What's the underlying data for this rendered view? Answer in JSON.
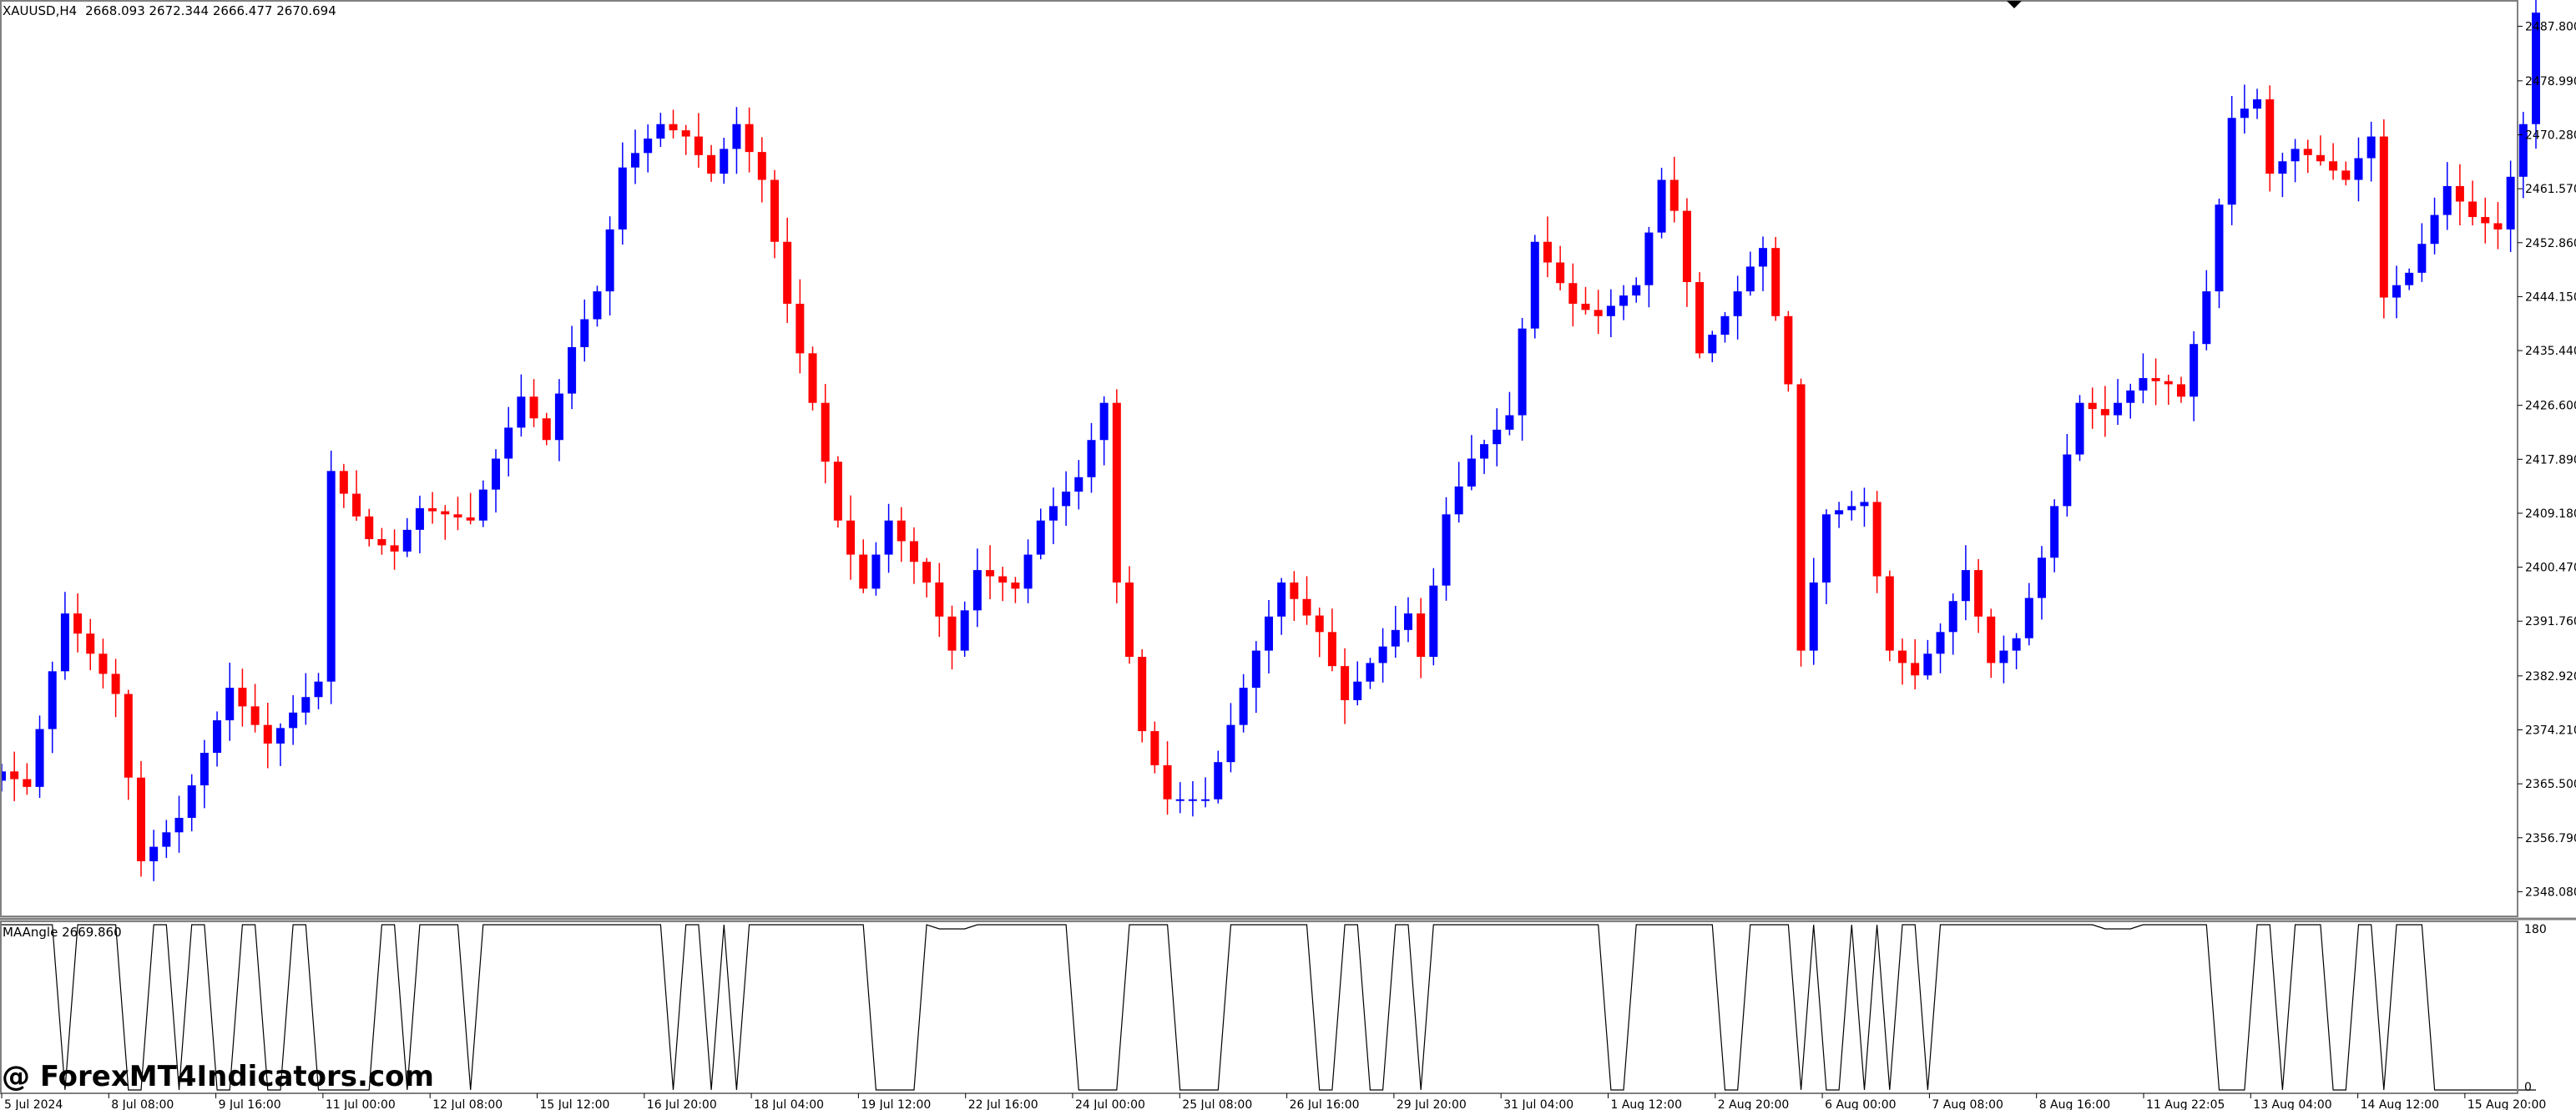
{
  "header": {
    "symbol_label": "XAUUSD,H4",
    "ohlc_label": "2668.093 2672.344 2666.477 2670.694"
  },
  "indicator": {
    "label": "MAAngle 2669.860",
    "scale_top": "180",
    "scale_bottom": "0"
  },
  "watermark": "@ ForexMT4Indicators.com",
  "colors": {
    "bull": "#0000ff",
    "bear": "#ff0000",
    "indicator_line": "#000000",
    "frame": "#808080",
    "background": "#ffffff"
  },
  "chart_data": [
    {
      "type": "candlestick",
      "symbol": "XAUUSD",
      "timeframe": "H4",
      "ylim": [
        2344.5,
        2491.5
      ],
      "y_ticks": [
        "2487.800",
        "2478.990",
        "2470.280",
        "2461.570",
        "2452.860",
        "2444.150",
        "2435.440",
        "2426.600",
        "2417.890",
        "2409.180",
        "2400.470",
        "2391.760",
        "2382.920",
        "2374.210",
        "2365.500",
        "2356.790",
        "2348.080"
      ],
      "x_ticks": [
        "5 Jul 2024",
        "8 Jul 08:00",
        "9 Jul 16:00",
        "11 Jul 00:00",
        "12 Jul 08:00",
        "15 Jul 12:00",
        "16 Jul 20:00",
        "18 Jul 04:00",
        "19 Jul 12:00",
        "22 Jul 16:00",
        "24 Jul 00:00",
        "25 Jul 08:00",
        "26 Jul 16:00",
        "29 Jul 20:00",
        "31 Jul 04:00",
        "1 Aug 12:00",
        "2 Aug 20:00",
        "6 Aug 00:00",
        "7 Aug 08:00",
        "8 Aug 16:00",
        "11 Aug 22:05",
        "13 Aug 04:00",
        "14 Aug 12:00",
        "15 Aug 20:00"
      ],
      "anchors": [
        [
          0,
          2367.5
        ],
        [
          2,
          2365
        ],
        [
          5,
          2393
        ],
        [
          9,
          2380
        ],
        [
          11,
          2353
        ],
        [
          14,
          2360
        ],
        [
          18,
          2381
        ],
        [
          21,
          2372
        ],
        [
          25,
          2382
        ],
        [
          26,
          2416
        ],
        [
          29,
          2405
        ],
        [
          31,
          2403
        ],
        [
          33,
          2410
        ],
        [
          37,
          2408
        ],
        [
          41,
          2428
        ],
        [
          43,
          2421
        ],
        [
          45,
          2436
        ],
        [
          47,
          2445
        ],
        [
          49,
          2465
        ],
        [
          52,
          2472
        ],
        [
          54,
          2470
        ],
        [
          56,
          2464
        ],
        [
          58,
          2472
        ],
        [
          60,
          2463
        ],
        [
          62,
          2443
        ],
        [
          64,
          2427
        ],
        [
          66,
          2408
        ],
        [
          68,
          2397
        ],
        [
          70,
          2408
        ],
        [
          73,
          2398
        ],
        [
          75,
          2387
        ],
        [
          77,
          2400
        ],
        [
          80,
          2397
        ],
        [
          82,
          2408
        ],
        [
          85,
          2415
        ],
        [
          87,
          2427
        ],
        [
          88,
          2398
        ],
        [
          90,
          2374
        ],
        [
          92,
          2363
        ],
        [
          95,
          2363
        ],
        [
          97,
          2375
        ],
        [
          99,
          2387
        ],
        [
          101,
          2398
        ],
        [
          104,
          2390
        ],
        [
          106,
          2379
        ],
        [
          108,
          2385
        ],
        [
          111,
          2393
        ],
        [
          112,
          2386
        ],
        [
          114,
          2409
        ],
        [
          116,
          2418
        ],
        [
          119,
          2425
        ],
        [
          121,
          2453
        ],
        [
          124,
          2443
        ],
        [
          126,
          2441
        ],
        [
          129,
          2446
        ],
        [
          131,
          2463
        ],
        [
          132,
          2458
        ],
        [
          134,
          2435
        ],
        [
          136,
          2441
        ],
        [
          138,
          2449
        ],
        [
          139,
          2452
        ],
        [
          141,
          2430
        ],
        [
          142,
          2387
        ],
        [
          144,
          2409
        ],
        [
          147,
          2411
        ],
        [
          149,
          2387
        ],
        [
          151,
          2383
        ],
        [
          153,
          2390
        ],
        [
          155,
          2400
        ],
        [
          157,
          2385
        ],
        [
          159,
          2389
        ],
        [
          161,
          2402
        ],
        [
          164,
          2427
        ],
        [
          166,
          2425
        ],
        [
          169,
          2431
        ],
        [
          171,
          2430
        ],
        [
          172,
          2428
        ],
        [
          174,
          2445
        ],
        [
          176,
          2473
        ],
        [
          178,
          2476
        ],
        [
          179,
          2464
        ],
        [
          181,
          2468
        ],
        [
          183,
          2466
        ],
        [
          185,
          2463
        ],
        [
          187,
          2470
        ],
        [
          188,
          2444
        ],
        [
          190,
          2448
        ],
        [
          193,
          2462
        ],
        [
          195,
          2457
        ],
        [
          197,
          2455
        ],
        [
          199,
          2472
        ],
        [
          200,
          2490
        ]
      ],
      "tooltip_ohlc": {
        "open": 2668.093,
        "high": 2672.344,
        "low": 2666.477,
        "close": 2670.694
      }
    },
    {
      "type": "line",
      "name": "MAAngle",
      "ylim": [
        0,
        180
      ],
      "last_value": 2669.86,
      "high_segments": [
        [
          0,
          4
        ],
        [
          6,
          9
        ],
        [
          12,
          13
        ],
        [
          15,
          16
        ],
        [
          19,
          20
        ],
        [
          23,
          24
        ],
        [
          30,
          31
        ],
        [
          33,
          34
        ],
        [
          35,
          36
        ],
        [
          38,
          52
        ],
        [
          54,
          55
        ],
        [
          57,
          57
        ],
        [
          59,
          68
        ],
        [
          73,
          84
        ],
        [
          89,
          92
        ],
        [
          97,
          103
        ],
        [
          106,
          107
        ],
        [
          110,
          111
        ],
        [
          113,
          126
        ],
        [
          129,
          135
        ],
        [
          138,
          141
        ],
        [
          143,
          143
        ],
        [
          146,
          146
        ],
        [
          148,
          148
        ],
        [
          150,
          151
        ],
        [
          153,
          174
        ],
        [
          178,
          179
        ],
        [
          181,
          183
        ],
        [
          186,
          187
        ],
        [
          189,
          191
        ]
      ],
      "bump_segments": [
        [
          74,
          76
        ],
        [
          166,
          168
        ]
      ]
    }
  ]
}
